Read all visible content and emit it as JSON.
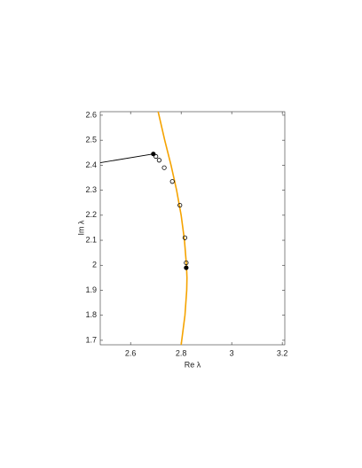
{
  "chart_data": {
    "type": "scatter",
    "xlabel": "Re λ",
    "ylabel": "Im λ",
    "xlim": [
      2.48,
      3.21
    ],
    "xticks": [
      2.6,
      2.8,
      3,
      3.2
    ],
    "ylim": [
      1.682,
      2.614
    ],
    "yticks": [
      1.7,
      1.8,
      1.9,
      2,
      2.1,
      2.2,
      2.3,
      2.4,
      2.5,
      2.6
    ],
    "series": [
      {
        "mode": "line",
        "color": "#f5a300",
        "x": [
          2.709,
          2.735,
          2.76,
          2.782,
          2.8,
          2.813,
          2.821,
          2.823,
          2.822,
          2.815,
          2.8
        ],
        "values": [
          2.614,
          2.5,
          2.4,
          2.3,
          2.2,
          2.1,
          2.0,
          1.95,
          1.9,
          1.8,
          1.682
        ]
      },
      {
        "mode": "line",
        "color": "#000000",
        "x": [
          2.48,
          2.69
        ],
        "values": [
          2.41,
          2.445
        ]
      },
      {
        "mode": "markers",
        "color": "#000000",
        "filled": false,
        "x": [
          2.7,
          2.713,
          2.733,
          2.765,
          2.795,
          2.815,
          2.82
        ],
        "values": [
          2.435,
          2.42,
          2.39,
          2.335,
          2.24,
          2.11,
          2.01
        ]
      },
      {
        "mode": "markers",
        "color": "#000000",
        "filled": true,
        "x": [
          2.69,
          2.82
        ],
        "values": [
          2.445,
          1.99
        ]
      }
    ]
  }
}
